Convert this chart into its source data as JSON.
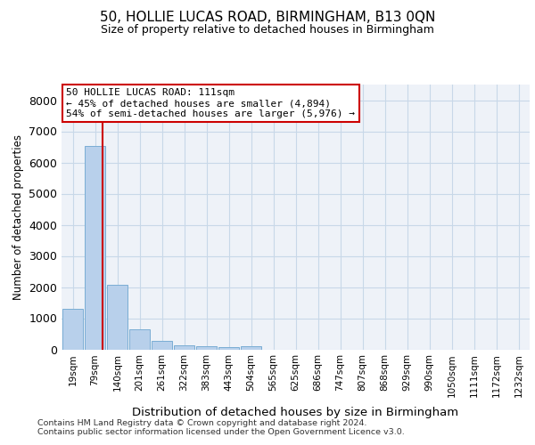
{
  "title": "50, HOLLIE LUCAS ROAD, BIRMINGHAM, B13 0QN",
  "subtitle": "Size of property relative to detached houses in Birmingham",
  "xlabel": "Distribution of detached houses by size in Birmingham",
  "ylabel": "Number of detached properties",
  "categories": [
    "19sqm",
    "79sqm",
    "140sqm",
    "201sqm",
    "261sqm",
    "322sqm",
    "383sqm",
    "443sqm",
    "504sqm",
    "565sqm",
    "625sqm",
    "686sqm",
    "747sqm",
    "807sqm",
    "868sqm",
    "929sqm",
    "990sqm",
    "1050sqm",
    "1111sqm",
    "1172sqm",
    "1232sqm"
  ],
  "values": [
    1310,
    6540,
    2080,
    630,
    280,
    135,
    90,
    70,
    100,
    0,
    0,
    0,
    0,
    0,
    0,
    0,
    0,
    0,
    0,
    0,
    0
  ],
  "bar_color": "#b8d0eb",
  "bar_edgecolor": "#7aadd4",
  "vline_x": 1.35,
  "vline_color": "#cc0000",
  "annotation_line1": "50 HOLLIE LUCAS ROAD: 111sqm",
  "annotation_line2": "← 45% of detached houses are smaller (4,894)",
  "annotation_line3": "54% of semi-detached houses are larger (5,976) →",
  "annotation_box_edgecolor": "#cc0000",
  "ylim": [
    0,
    8500
  ],
  "yticks": [
    0,
    1000,
    2000,
    3000,
    4000,
    5000,
    6000,
    7000,
    8000
  ],
  "grid_color": "#c8d8e8",
  "plot_bg_color": "#eef2f8",
  "footer1": "Contains HM Land Registry data © Crown copyright and database right 2024.",
  "footer2": "Contains public sector information licensed under the Open Government Licence v3.0."
}
